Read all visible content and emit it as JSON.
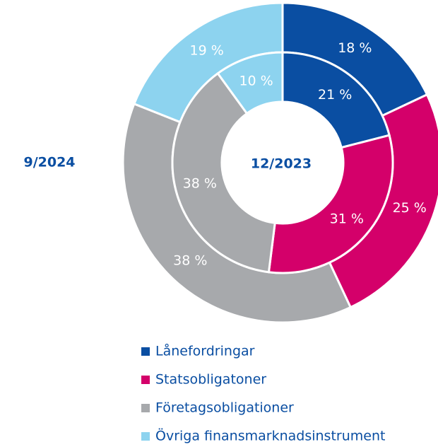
{
  "chart_data": {
    "type": "donut",
    "categories": [
      "Lånefordringar",
      "Statsobligatoner",
      "Företagsobligationer",
      "Övriga finansmarknadsinstrument"
    ],
    "colors": [
      "#0a4ea2",
      "#d4006a",
      "#a7a9ac",
      "#8dd3ef"
    ],
    "series": [
      {
        "name": "9/2024",
        "values": [
          18,
          25,
          38,
          19
        ],
        "value_labels": [
          "18 %",
          "25 %",
          "38 %",
          "19 %"
        ]
      },
      {
        "name": "12/2023",
        "values": [
          21,
          31,
          38,
          10
        ],
        "value_labels": [
          "21 %",
          "31 %",
          "38 %",
          "10 %"
        ]
      }
    ]
  }
}
